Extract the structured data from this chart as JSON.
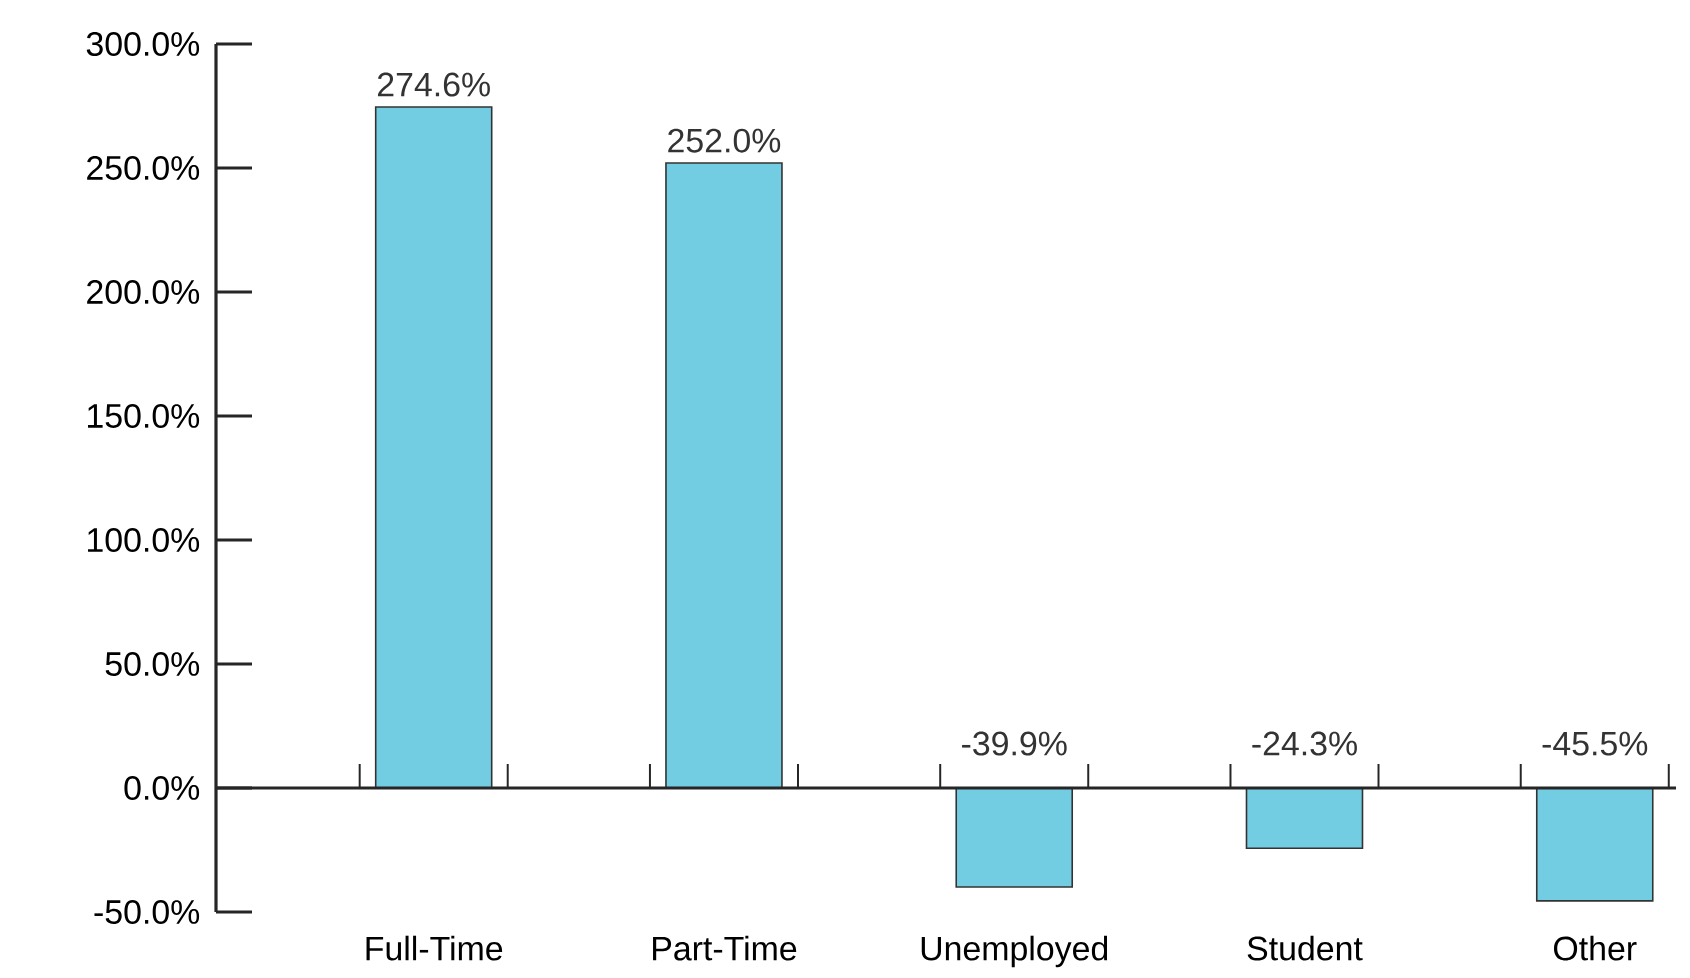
{
  "chart_data": {
    "type": "bar",
    "categories": [
      "Full-Time",
      "Part-Time",
      "Unemployed",
      "Student",
      "Other"
    ],
    "values": [
      274.6,
      252.0,
      -39.9,
      -24.3,
      -45.5
    ],
    "value_labels": [
      "274.6%",
      "252.0%",
      "-39.9%",
      "-24.3%",
      "-45.5%"
    ],
    "color": "#72cde3",
    "ylim": [
      -50,
      300
    ],
    "yticks": [
      {
        "value": -50,
        "label": "-50.0%"
      },
      {
        "value": 0,
        "label": "0.0%"
      },
      {
        "value": 50,
        "label": "50.0%"
      },
      {
        "value": 100,
        "label": "100.0%"
      },
      {
        "value": 150,
        "label": "150.0%"
      },
      {
        "value": 200,
        "label": "200.0%"
      },
      {
        "value": 250,
        "label": "250.0%"
      },
      {
        "value": 300,
        "label": "300.0%"
      }
    ]
  }
}
